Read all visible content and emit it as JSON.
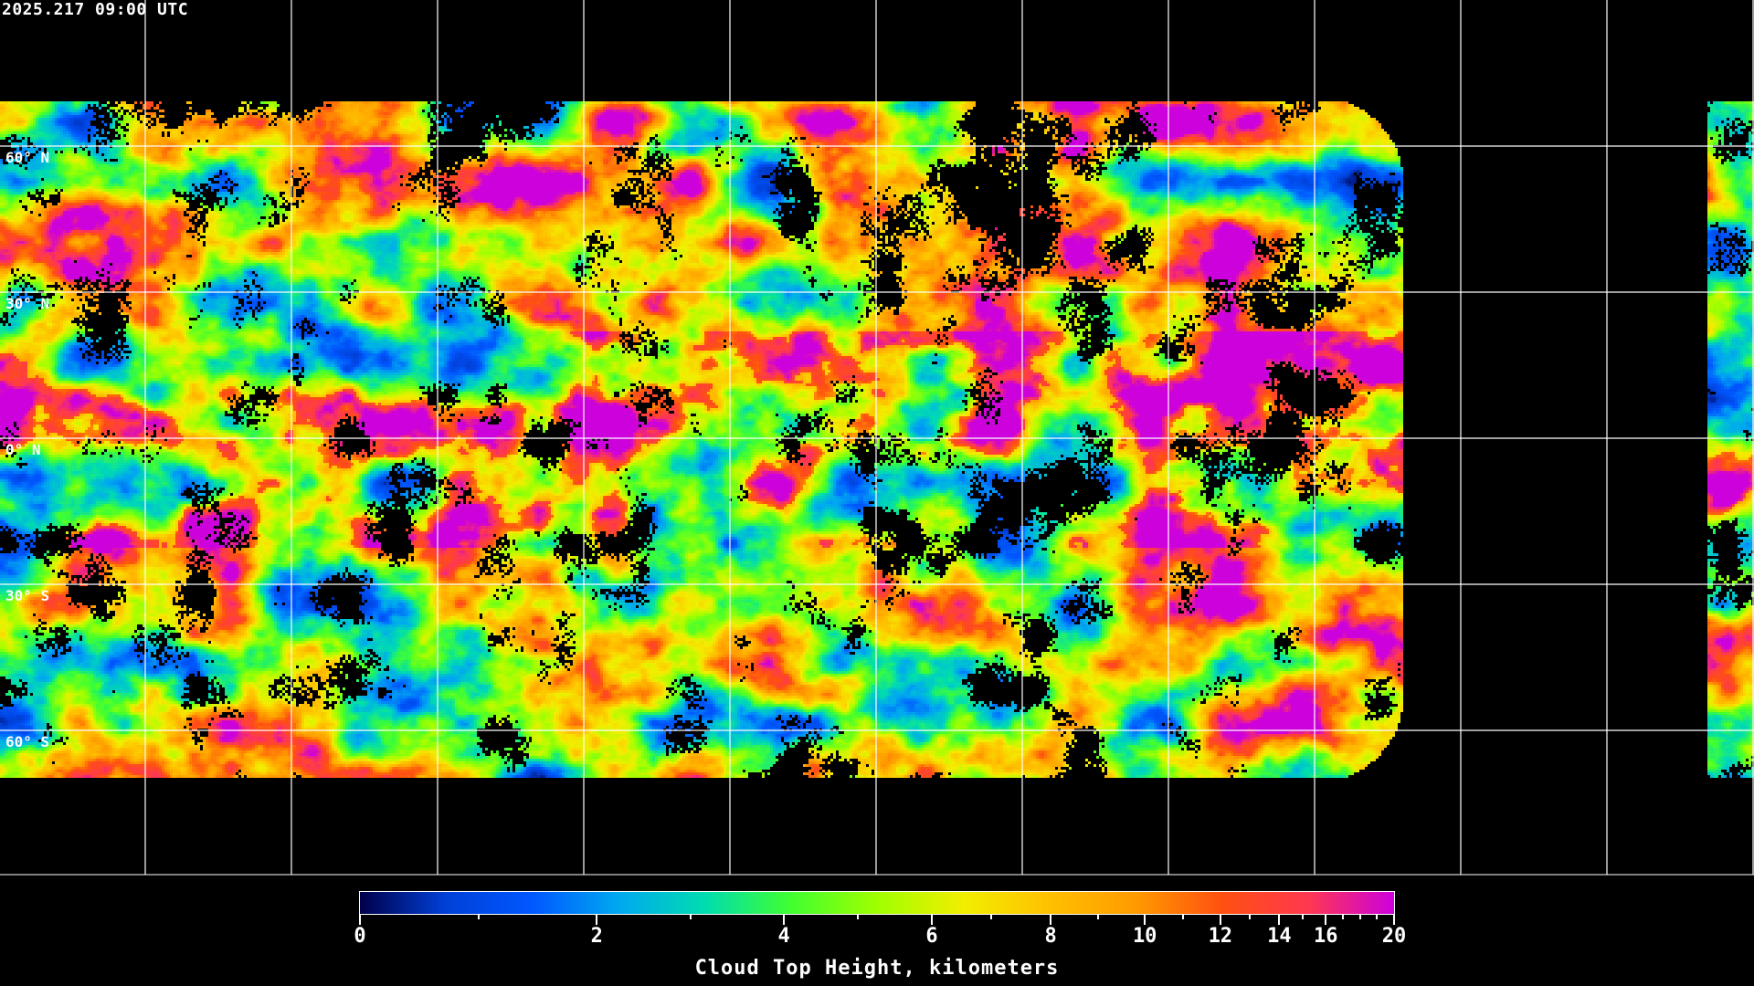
{
  "title": "2025.217 09:00 UTC",
  "map": {
    "projection": "equirectangular",
    "gridline_color": "#ffffff",
    "lat_labels": [
      "60° N",
      "30° N",
      "0° N",
      "30° S",
      "60° S"
    ],
    "gridline_spacing_degrees": 30
  },
  "colorbar": {
    "label": "Cloud Top Height, kilometers",
    "min": 0,
    "max": 20,
    "major_ticks": [
      "0",
      "2",
      "4",
      "6",
      "8",
      "10",
      "12",
      "14",
      "16",
      "20"
    ],
    "minor_ticks": [
      1,
      3,
      5,
      7,
      9,
      11,
      13,
      15,
      17,
      18,
      19
    ],
    "colors": [
      "#00004a",
      "#0040d8",
      "#0058ff",
      "#00a8f0",
      "#00dcb0",
      "#40ff30",
      "#a0ff00",
      "#f2ee00",
      "#ffc000",
      "#ff9a00",
      "#ff5010",
      "#ff3850",
      "#cc00dd"
    ]
  }
}
